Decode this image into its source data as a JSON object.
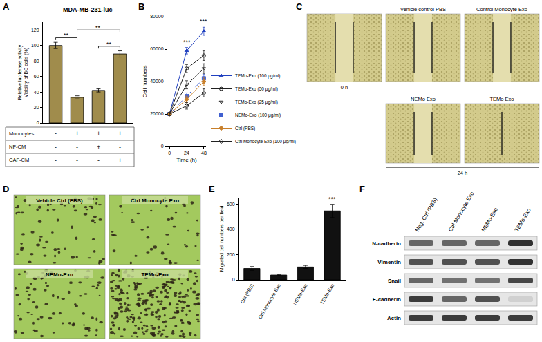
{
  "chart_data": [
    {
      "label": "A",
      "type": "bar",
      "title": "MDA-MB-231-luc",
      "ylabel": [
        "Relative luciferase activity",
        "Viability of BC cells (%)"
      ],
      "categories": [
        null,
        null,
        null,
        null
      ],
      "values": [
        100,
        33,
        42,
        89
      ],
      "errors": [
        4,
        2,
        2,
        4
      ],
      "color": "#a08c4c",
      "ylim": [
        0,
        130
      ],
      "yticks": [
        0,
        20,
        40,
        60,
        80,
        100,
        120
      ],
      "grid": false,
      "tick_labels": "y",
      "significance": [
        {
          "from": 0,
          "to": 1,
          "text": "**"
        },
        {
          "from": 2,
          "to": 3,
          "text": "**"
        },
        {
          "from": 1,
          "to": 3,
          "text": "**"
        }
      ],
      "table": {
        "rows": [
          {
            "label": "Monocytes",
            "values": [
              "-",
              "+",
              "+",
              "+"
            ]
          },
          {
            "label": "NF-CM",
            "values": [
              "-",
              "-",
              "+",
              "-"
            ]
          },
          {
            "label": "CAF-CM",
            "values": [
              "-",
              "-",
              "-",
              "+"
            ]
          }
        ]
      }
    },
    {
      "label": "B",
      "type": "line",
      "xlabel": "Time (h)",
      "ylabel": "Cell numbers",
      "x": [
        0,
        24,
        48
      ],
      "xlim": [
        -3,
        51
      ],
      "xticks": [
        0,
        24,
        48
      ],
      "ylim": [
        0,
        80000
      ],
      "yticks": [
        0,
        20000,
        40000,
        60000,
        80000
      ],
      "grid": false,
      "legend": "right",
      "series": [
        {
          "name": "TEMo-Exo (100 μg/ml)",
          "color": "#2040c0",
          "marker": "triangle-up",
          "line_style": "solid",
          "values": [
            20000,
            59000,
            71000
          ],
          "errors": [
            1000,
            2000,
            2500
          ]
        },
        {
          "name": "TEMo-Exo (50 μg/ml)",
          "color": "#202020",
          "marker": "circle-open",
          "line_style": "solid",
          "values": [
            20000,
            48000,
            56000
          ],
          "errors": [
            1000,
            2500,
            3000
          ]
        },
        {
          "name": "TEMo-Exo (25 μg/ml)",
          "color": "#202020",
          "marker": "triangle-down-open",
          "line_style": "solid",
          "values": [
            20000,
            38000,
            48000
          ],
          "errors": [
            1000,
            2500,
            3000
          ]
        },
        {
          "name": "NEMo-Exo (100 μg/ml)",
          "color": "#4060d0",
          "marker": "square",
          "line_style": "dashed",
          "values": [
            20000,
            31000,
            42000
          ],
          "errors": [
            1000,
            2000,
            2500
          ]
        },
        {
          "name": "Ctrl (PBS)",
          "color": "#c87f2a",
          "marker": "diamond",
          "line_style": "solid",
          "values": [
            20000,
            29000,
            40000
          ],
          "errors": [
            1000,
            2000,
            2500
          ]
        },
        {
          "name": "Ctrl Monocyte Exo (100 μg/ml)",
          "color": "#202020",
          "marker": "diamond-open",
          "line_style": "solid",
          "values": [
            20000,
            25000,
            33000
          ],
          "errors": [
            1000,
            2000,
            2500
          ]
        }
      ],
      "significance": [
        {
          "x": 24,
          "text": "***"
        },
        {
          "x": 48,
          "text": "***"
        }
      ]
    },
    {
      "label": "E",
      "type": "bar",
      "ylabel": "Migrated cell numbers per field",
      "categories": [
        "Ctrl (PBS)",
        "Ctrl Monocyte Exo",
        "NEMo-Exo",
        "TEMo-Exo"
      ],
      "values": [
        90,
        38,
        102,
        545
      ],
      "errors": [
        15,
        4,
        12,
        52
      ],
      "color": "#111111",
      "ylim": [
        0,
        650
      ],
      "yticks": [
        0,
        200,
        400,
        600
      ],
      "grid": false,
      "significance": [
        {
          "index": 3,
          "text": "***"
        }
      ]
    }
  ],
  "wound_healing": {
    "label": "C",
    "rows": [
      [
        {
          "caption": "0 h",
          "caption_side": "below",
          "lines": 2
        },
        {
          "caption": "Vehicle control PBS",
          "caption_side": "above",
          "lines": 2
        },
        {
          "caption": "Control Monocyte Exo",
          "caption_side": "above",
          "lines": 2
        }
      ],
      [
        {
          "caption": "NEMo Exo",
          "caption_side": "above",
          "lines": 2
        },
        {
          "caption": "TEMo Exo",
          "caption_side": "above",
          "lines": 1
        }
      ]
    ],
    "row_label": "24 h"
  },
  "transwell": {
    "label": "D",
    "images": [
      {
        "caption": "Vehicle Ctrl (PBS)",
        "cells": 70
      },
      {
        "caption": "Ctrl Monocyte Exo",
        "cells": 45
      },
      {
        "caption": "NEMo-Exo",
        "cells": 80
      },
      {
        "caption": "TEMo-Exo",
        "cells": 260
      }
    ]
  },
  "western_blot": {
    "label": "F",
    "lanes": [
      "Neg. Ctrl (PBS)",
      "Ctrl Monocyte Exo",
      "NEMo-Exo",
      "TEMo-Exo"
    ],
    "rows": [
      {
        "label": "N-cadherin",
        "bands": [
          0.6,
          0.6,
          0.6,
          0.85
        ]
      },
      {
        "label": "Vimentin",
        "bands": [
          0.7,
          0.7,
          0.7,
          0.85
        ]
      },
      {
        "label": "Snail",
        "bands": [
          0.6,
          0.55,
          0.55,
          0.75
        ]
      },
      {
        "label": "E-cadherin",
        "bands": [
          0.8,
          0.6,
          0.7,
          0.1
        ]
      },
      {
        "label": "Actin",
        "bands": [
          0.8,
          0.8,
          0.8,
          0.8
        ]
      }
    ]
  }
}
